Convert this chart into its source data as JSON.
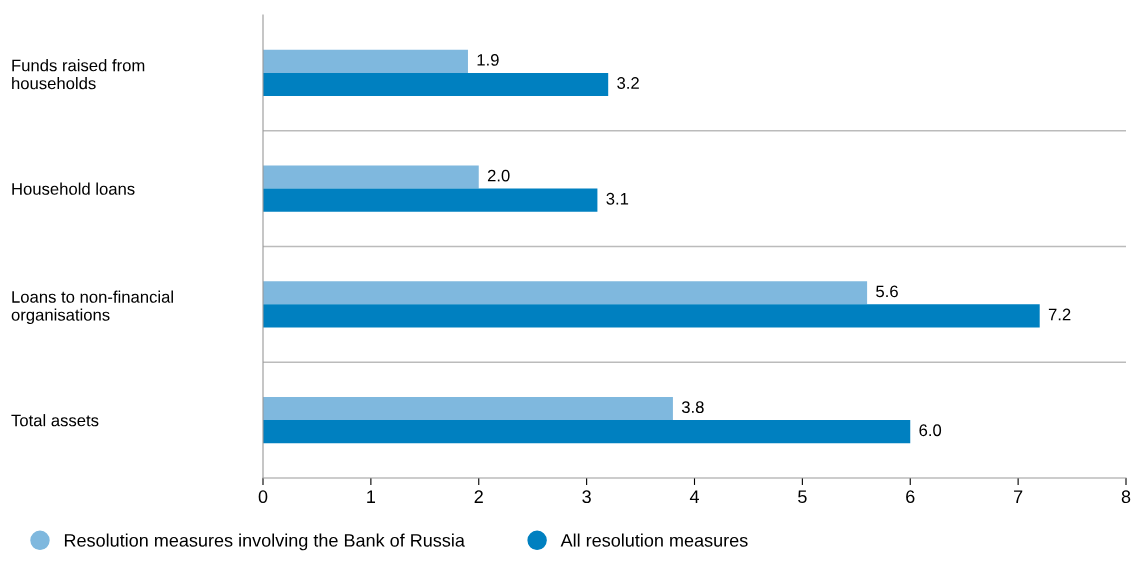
{
  "chart_data": {
    "type": "bar",
    "orientation": "horizontal",
    "categories": [
      "Funds raised from\nhouseholds",
      "Household loans",
      "Loans to non-financial\norganisations",
      "Total assets"
    ],
    "series": [
      {
        "name": "Resolution measures involving the Bank of Russia",
        "color": "#7fb8de",
        "values": [
          1.9,
          2.0,
          5.6,
          3.8
        ],
        "value_labels": [
          "1.9",
          "2.0",
          "5.6",
          "3.8"
        ]
      },
      {
        "name": "All resolution measures",
        "color": "#0080c0",
        "values": [
          3.2,
          3.1,
          7.2,
          6.0
        ],
        "value_labels": [
          "3.2",
          "3.1",
          "7.2",
          "6.0"
        ]
      }
    ],
    "xlim": [
      0,
      8
    ],
    "xticks": [
      0,
      1,
      2,
      3,
      4,
      5,
      6,
      7,
      8
    ],
    "grid": "y",
    "legend": "bottom"
  }
}
